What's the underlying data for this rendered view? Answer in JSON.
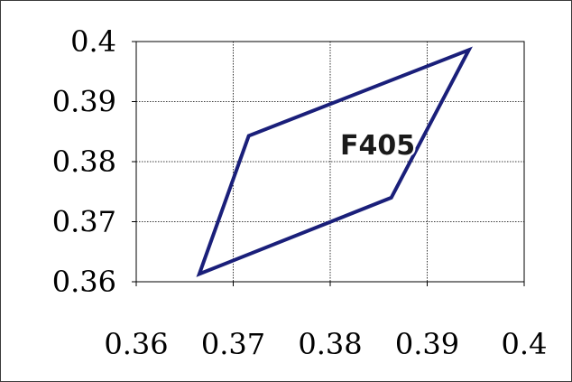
{
  "chart_data": {
    "type": "line",
    "title": "",
    "xlabel": "",
    "ylabel": "",
    "xlim": [
      0.36,
      0.4
    ],
    "ylim": [
      0.36,
      0.4
    ],
    "x_ticks": [
      "0.36",
      "0.37",
      "0.38",
      "0.39",
      "0.4"
    ],
    "y_ticks": [
      "0.36",
      "0.37",
      "0.38",
      "0.39",
      "0.4"
    ],
    "x_tick_values": [
      0.36,
      0.37,
      0.38,
      0.39,
      0.4
    ],
    "y_tick_values": [
      0.36,
      0.37,
      0.38,
      0.39,
      0.4
    ],
    "grid": true,
    "legend": "none",
    "annotation": "F405",
    "series": [
      {
        "name": "F405",
        "color": "#1a1f7a",
        "closed": true,
        "points": [
          {
            "x": 0.3665,
            "y": 0.3613
          },
          {
            "x": 0.3716,
            "y": 0.3843
          },
          {
            "x": 0.3943,
            "y": 0.3986
          },
          {
            "x": 0.3863,
            "y": 0.374
          }
        ]
      }
    ]
  }
}
